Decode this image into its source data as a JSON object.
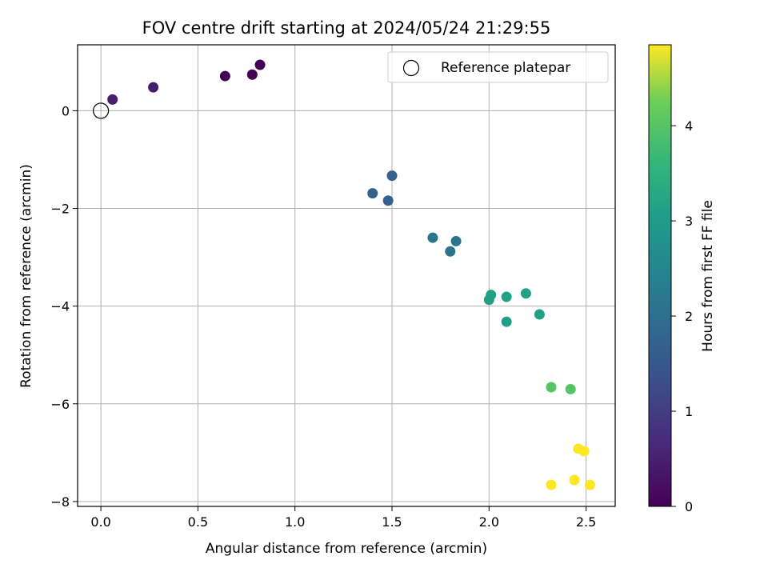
{
  "chart_data": {
    "type": "scatter",
    "title": "FOV centre drift starting at 2024/05/24 21:29:55",
    "xlabel": "Angular distance from reference (arcmin)",
    "ylabel": "Rotation from reference (arcmin)",
    "xlim": [
      -0.12,
      2.65
    ],
    "ylim": [
      -8.1,
      1.35
    ],
    "xticks": [
      0.0,
      0.5,
      1.0,
      1.5,
      2.0,
      2.5
    ],
    "xtick_labels": [
      "0.0",
      "0.5",
      "1.0",
      "1.5",
      "2.0",
      "2.5"
    ],
    "yticks": [
      0,
      -2,
      -4,
      -6,
      -8
    ],
    "ytick_labels": [
      "0",
      "−2",
      "−4",
      "−6",
      "−8"
    ],
    "grid": true,
    "legend": {
      "placement": "top-right",
      "entries": [
        "Reference platepar"
      ]
    },
    "reference_point": {
      "x": 0.0,
      "y": 0.0
    },
    "colorbar": {
      "label": "Hours from first FF file",
      "range": [
        0,
        4.85
      ],
      "ticks": [
        0,
        1,
        2,
        3,
        4
      ],
      "tick_labels": [
        "0",
        "1",
        "2",
        "3",
        "4"
      ],
      "colormap": "viridis"
    },
    "points": [
      {
        "x": 0.06,
        "y": 0.23,
        "hours": 0.45
      },
      {
        "x": 0.27,
        "y": 0.48,
        "hours": 0.45
      },
      {
        "x": 0.64,
        "y": 0.71,
        "hours": 0.0
      },
      {
        "x": 0.78,
        "y": 0.74,
        "hours": 0.0
      },
      {
        "x": 0.82,
        "y": 0.94,
        "hours": 0.0
      },
      {
        "x": 1.4,
        "y": -1.69,
        "hours": 1.7
      },
      {
        "x": 1.48,
        "y": -1.84,
        "hours": 1.7
      },
      {
        "x": 1.5,
        "y": -1.33,
        "hours": 1.7
      },
      {
        "x": 1.71,
        "y": -2.6,
        "hours": 2.1
      },
      {
        "x": 1.8,
        "y": -2.88,
        "hours": 2.1
      },
      {
        "x": 1.83,
        "y": -2.67,
        "hours": 2.1
      },
      {
        "x": 2.0,
        "y": -3.87,
        "hours": 3.1
      },
      {
        "x": 2.01,
        "y": -3.77,
        "hours": 3.1
      },
      {
        "x": 2.09,
        "y": -3.81,
        "hours": 3.1
      },
      {
        "x": 2.09,
        "y": -4.32,
        "hours": 3.1
      },
      {
        "x": 2.19,
        "y": -3.74,
        "hours": 3.1
      },
      {
        "x": 2.26,
        "y": -4.17,
        "hours": 3.1
      },
      {
        "x": 2.32,
        "y": -5.66,
        "hours": 4.0
      },
      {
        "x": 2.42,
        "y": -5.7,
        "hours": 4.0
      },
      {
        "x": 2.46,
        "y": -6.92,
        "hours": 4.85
      },
      {
        "x": 2.49,
        "y": -6.97,
        "hours": 4.85
      },
      {
        "x": 2.32,
        "y": -7.66,
        "hours": 4.85
      },
      {
        "x": 2.44,
        "y": -7.56,
        "hours": 4.85
      },
      {
        "x": 2.52,
        "y": -7.66,
        "hours": 4.85
      }
    ]
  }
}
